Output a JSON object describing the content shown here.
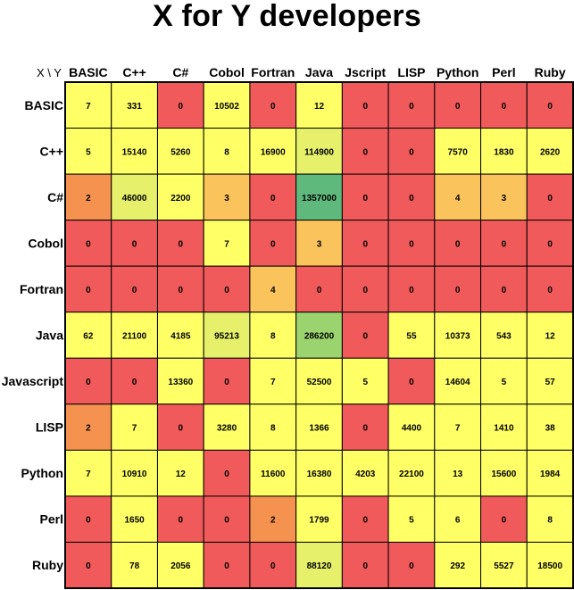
{
  "title": "X for Y developers",
  "corner_label": "X \\ Y",
  "chart_data": {
    "type": "heatmap",
    "title": "X for Y developers",
    "x_axis_name": "Y",
    "y_axis_name": "X",
    "columns": [
      "BASIC",
      "C++",
      "C#",
      "Cobol",
      "Fortran",
      "Java",
      "Jscript",
      "LISP",
      "Python",
      "Perl",
      "Ruby"
    ],
    "rows": [
      "BASIC",
      "C++",
      "C#",
      "Cobol",
      "Fortran",
      "Java",
      "Javascript",
      "LISP",
      "Python",
      "Perl",
      "Ruby"
    ],
    "values": [
      [
        7,
        331,
        0,
        10502,
        0,
        12,
        0,
        0,
        0,
        0,
        0
      ],
      [
        5,
        15140,
        5260,
        8,
        16900,
        114900,
        0,
        0,
        7570,
        1830,
        2620
      ],
      [
        2,
        46000,
        2200,
        3,
        0,
        1357000,
        0,
        0,
        4,
        3,
        0
      ],
      [
        0,
        0,
        0,
        7,
        0,
        3,
        0,
        0,
        0,
        0,
        0
      ],
      [
        0,
        0,
        0,
        0,
        4,
        0,
        0,
        0,
        0,
        0,
        0
      ],
      [
        62,
        21100,
        4185,
        95213,
        8,
        286200,
        0,
        55,
        10373,
        543,
        12
      ],
      [
        0,
        0,
        13360,
        0,
        7,
        52500,
        5,
        0,
        14604,
        5,
        57
      ],
      [
        2,
        7,
        0,
        3280,
        8,
        1366,
        0,
        4400,
        7,
        1410,
        38
      ],
      [
        7,
        10910,
        12,
        0,
        11600,
        16380,
        4203,
        22100,
        13,
        15600,
        1984
      ],
      [
        0,
        1650,
        0,
        0,
        2,
        1799,
        0,
        5,
        6,
        0,
        8
      ],
      [
        0,
        78,
        2056,
        0,
        0,
        88120,
        0,
        0,
        292,
        5527,
        18500
      ]
    ],
    "color_scale": {
      "zero": "#f05a5a",
      "very_low": "#f5924f",
      "low": "#fbc35b",
      "mid": "#ffff66",
      "high": "#e6f06a",
      "higher": "#9bd46e",
      "highest": "#5fb97d"
    },
    "cell_colors": [
      [
        "mid",
        "mid",
        "zero",
        "mid",
        "zero",
        "mid",
        "zero",
        "zero",
        "zero",
        "zero",
        "zero"
      ],
      [
        "mid",
        "mid",
        "mid",
        "mid",
        "mid",
        "high",
        "zero",
        "zero",
        "mid",
        "mid",
        "mid"
      ],
      [
        "very_low",
        "high",
        "mid",
        "low",
        "zero",
        "highest",
        "zero",
        "zero",
        "low",
        "low",
        "zero"
      ],
      [
        "zero",
        "zero",
        "zero",
        "mid",
        "zero",
        "low",
        "zero",
        "zero",
        "zero",
        "zero",
        "zero"
      ],
      [
        "zero",
        "zero",
        "zero",
        "zero",
        "low",
        "zero",
        "zero",
        "zero",
        "zero",
        "zero",
        "zero"
      ],
      [
        "mid",
        "mid",
        "mid",
        "high",
        "mid",
        "higher",
        "zero",
        "mid",
        "mid",
        "mid",
        "mid"
      ],
      [
        "zero",
        "zero",
        "mid",
        "zero",
        "mid",
        "mid",
        "mid",
        "zero",
        "mid",
        "mid",
        "mid"
      ],
      [
        "very_low",
        "mid",
        "zero",
        "mid",
        "mid",
        "mid",
        "zero",
        "mid",
        "mid",
        "mid",
        "mid"
      ],
      [
        "mid",
        "mid",
        "mid",
        "zero",
        "mid",
        "mid",
        "mid",
        "mid",
        "mid",
        "mid",
        "mid"
      ],
      [
        "zero",
        "mid",
        "zero",
        "zero",
        "very_low",
        "mid",
        "zero",
        "mid",
        "mid",
        "zero",
        "mid"
      ],
      [
        "zero",
        "mid",
        "mid",
        "zero",
        "zero",
        "high",
        "zero",
        "zero",
        "mid",
        "mid",
        "mid"
      ]
    ],
    "grid": true,
    "legend": "none"
  }
}
